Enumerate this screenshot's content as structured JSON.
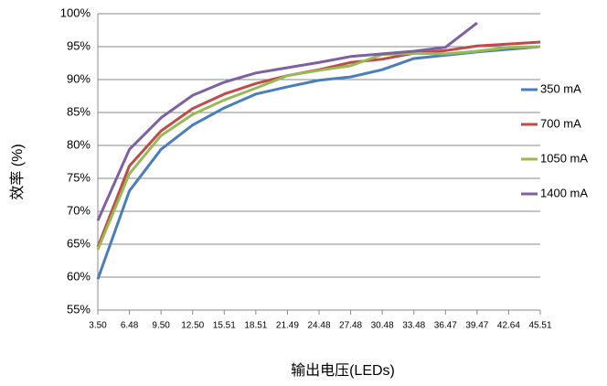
{
  "chart_data": {
    "type": "line",
    "x_label": "输出电压(LEDs)",
    "y_label": "效率 (%)",
    "categories": [
      "3.50",
      "6.48",
      "9.50",
      "12.50",
      "15.51",
      "18.51",
      "21.49",
      "24.48",
      "27.48",
      "30.48",
      "33.48",
      "36.47",
      "39.47",
      "42.64",
      "45.51"
    ],
    "ylim": [
      55,
      100
    ],
    "yticks": [
      {
        "value": 55,
        "label": "55%"
      },
      {
        "value": 60,
        "label": "60%"
      },
      {
        "value": 65,
        "label": "65%"
      },
      {
        "value": 70,
        "label": "70%"
      },
      {
        "value": 75,
        "label": "75%"
      },
      {
        "value": 80,
        "label": "80%"
      },
      {
        "value": 85,
        "label": "85%"
      },
      {
        "value": 90,
        "label": "90%"
      },
      {
        "value": 95,
        "label": "95%"
      },
      {
        "value": 100,
        "label": "100%"
      }
    ],
    "grid": true,
    "legend": "right",
    "series": [
      {
        "name": "350 mA",
        "color": "#4a7ebb",
        "values": [
          59.7,
          73.1,
          79.4,
          83.1,
          85.7,
          87.8,
          88.9,
          89.9,
          90.4,
          91.5,
          93.2,
          93.7,
          94.2,
          94.6,
          95.0
        ]
      },
      {
        "name": "700 mA",
        "color": "#be4b48",
        "values": [
          64.6,
          76.9,
          82.2,
          85.6,
          87.8,
          89.4,
          90.6,
          91.5,
          92.6,
          93.1,
          94.0,
          94.4,
          95.1,
          95.4,
          95.7
        ]
      },
      {
        "name": "1050 mA",
        "color": "#98b954",
        "values": [
          64.2,
          75.7,
          81.5,
          84.7,
          86.9,
          88.7,
          90.6,
          91.4,
          92.1,
          93.8,
          94.0,
          93.9,
          94.3,
          94.9,
          95.0
        ]
      },
      {
        "name": "1400 mA",
        "color": "#7d60a0",
        "values": [
          68.6,
          79.4,
          84.2,
          87.6,
          89.6,
          91.0,
          91.8,
          92.6,
          93.5,
          93.9,
          94.3,
          94.9,
          98.6,
          null,
          null
        ]
      }
    ]
  }
}
